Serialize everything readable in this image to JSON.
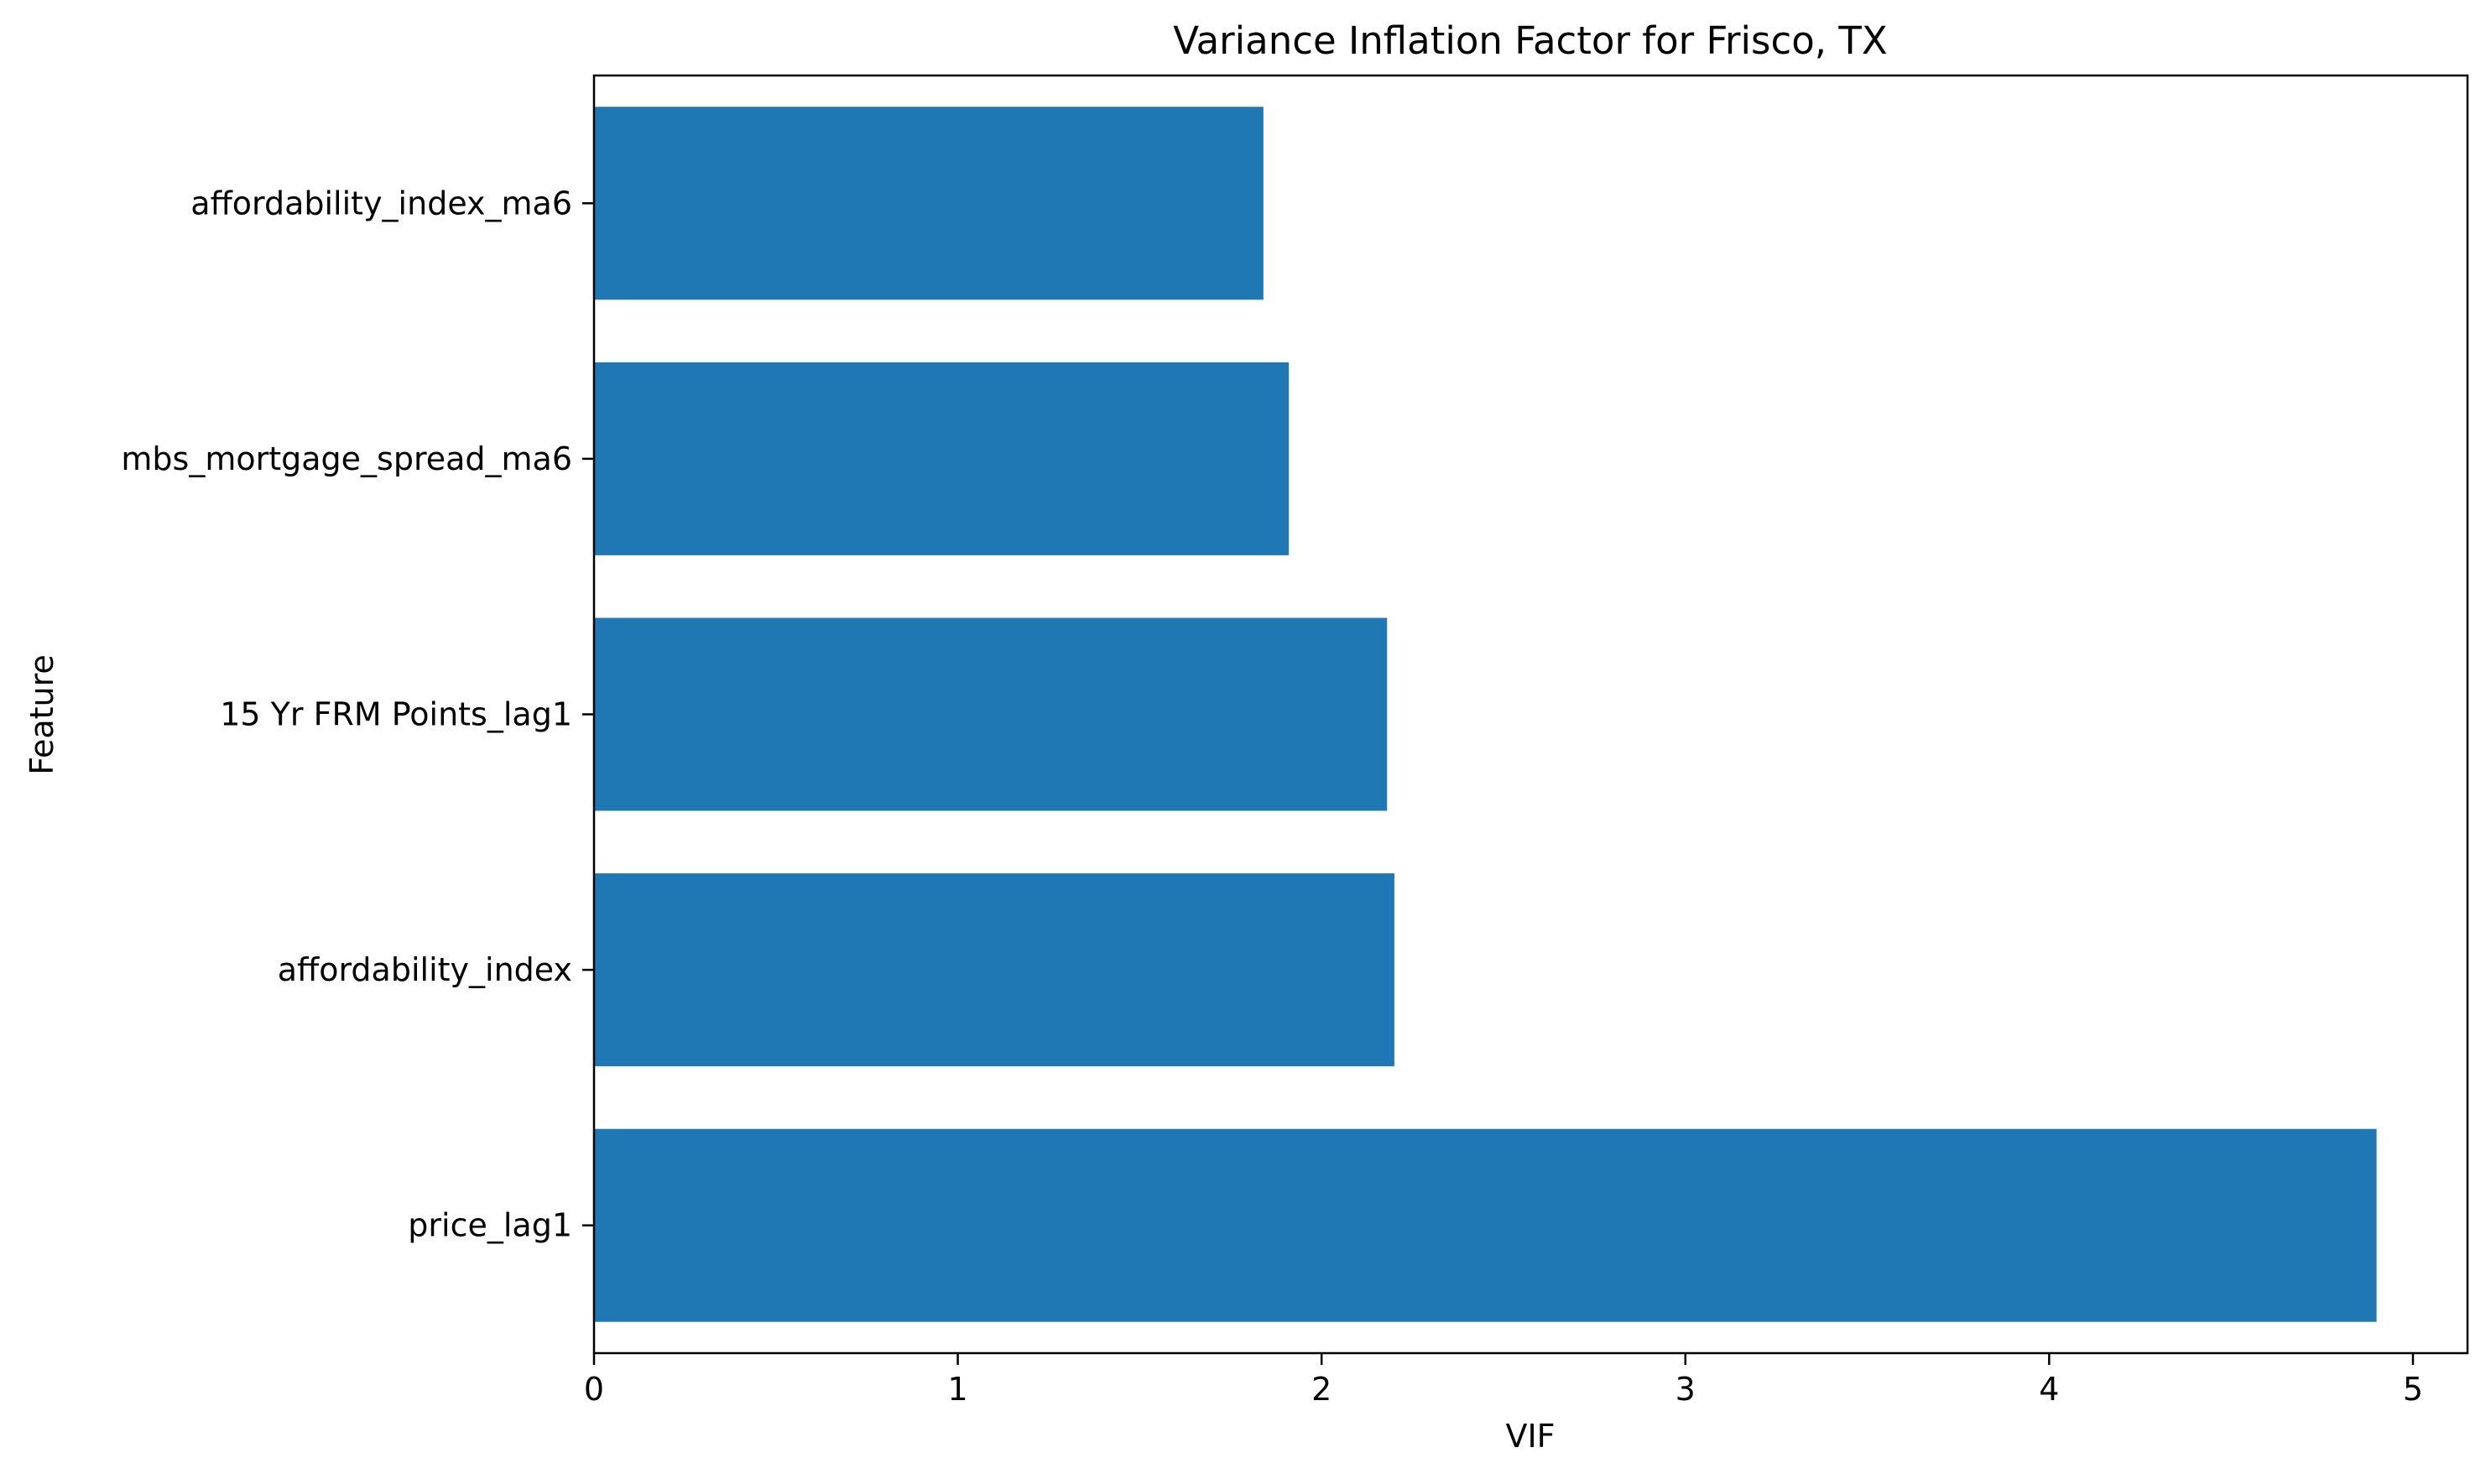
{
  "chart_data": {
    "type": "bar",
    "orientation": "horizontal",
    "title": "Variance Inflation Factor for Frisco, TX",
    "xlabel": "VIF",
    "ylabel": "Feature",
    "categories": [
      "price_lag1",
      "affordability_index",
      "15 Yr FRM Points_lag1",
      "mbs_mortgage_spread_ma6",
      "affordability_index_ma6"
    ],
    "values": [
      4.9,
      2.2,
      2.18,
      1.91,
      1.84
    ],
    "xlim": [
      0,
      5.15
    ],
    "xticks": [
      0,
      1,
      2,
      3,
      4,
      5
    ],
    "xtick_labels": [
      "0",
      "1",
      "2",
      "3",
      "4",
      "5"
    ],
    "grid": false,
    "bar_color": "#1f77b4"
  }
}
